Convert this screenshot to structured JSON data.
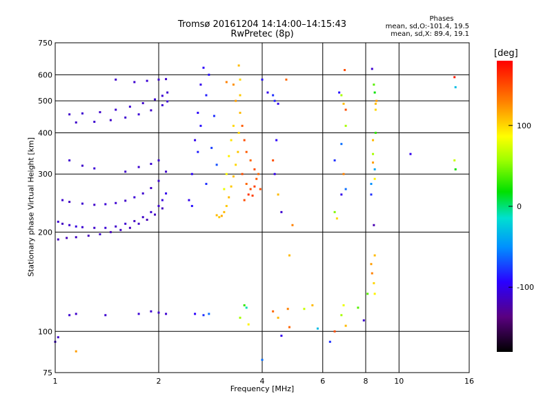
{
  "chart_data": {
    "type": "scatter",
    "title": "Tromsø 20161204 14:14:00–14:15:43",
    "subtitle": "RwPretec (8p)",
    "xlabel": "Frequency [MHz]",
    "ylabel": "Stationary phase Virtual Height [km]",
    "x_scale": "log",
    "y_scale": "log",
    "xlim": [
      1,
      16
    ],
    "ylim": [
      75,
      750
    ],
    "x_ticks": [
      1,
      2,
      4,
      6,
      8,
      10,
      16
    ],
    "y_ticks": [
      75,
      100,
      200,
      300,
      400,
      500,
      600,
      750
    ],
    "grid": true,
    "legend": {
      "title": "Phases",
      "lines": [
        "mean, sd,O:-101.4, 19.5",
        "mean, sd,X: 89.4, 19.1"
      ],
      "placement": "top-right"
    },
    "colorbar": {
      "unit": "[deg]",
      "ticks": [
        100,
        0,
        -100
      ],
      "range": [
        -180,
        180
      ]
    },
    "series": [
      {
        "points": [
          [
            1.02,
            215,
            -110
          ],
          [
            1.05,
            212,
            -115
          ],
          [
            1.1,
            210,
            -110
          ],
          [
            1.15,
            208,
            -105
          ],
          [
            1.2,
            207,
            -110
          ],
          [
            1.3,
            206,
            -112
          ],
          [
            1.4,
            206,
            -108
          ],
          [
            1.5,
            208,
            -112
          ],
          [
            1.6,
            212,
            -110
          ],
          [
            1.7,
            216,
            -115
          ],
          [
            1.8,
            222,
            -112
          ],
          [
            1.9,
            230,
            -108
          ],
          [
            2.0,
            240,
            -110
          ],
          [
            2.05,
            250,
            -105
          ],
          [
            2.1,
            262,
            -100
          ],
          [
            1.02,
            190,
            -115
          ],
          [
            1.08,
            192,
            -118
          ],
          [
            1.15,
            193,
            -114
          ],
          [
            1.25,
            195,
            -116
          ],
          [
            1.35,
            197,
            -112
          ],
          [
            1.45,
            200,
            -118
          ],
          [
            1.55,
            203,
            -114
          ],
          [
            1.65,
            206,
            -116
          ],
          [
            1.75,
            212,
            -112
          ],
          [
            1.85,
            218,
            -118
          ],
          [
            1.95,
            226,
            -114
          ],
          [
            2.05,
            236,
            -116
          ],
          [
            1.05,
            250,
            -110
          ],
          [
            1.1,
            247,
            -115
          ],
          [
            1.2,
            244,
            -110
          ],
          [
            1.3,
            242,
            -112
          ],
          [
            1.4,
            243,
            -108
          ],
          [
            1.5,
            245,
            -110
          ],
          [
            1.6,
            249,
            -112
          ],
          [
            1.7,
            255,
            -108
          ],
          [
            1.8,
            262,
            -110
          ],
          [
            1.9,
            272,
            -112
          ],
          [
            2.0,
            286,
            -110
          ],
          [
            2.1,
            305,
            -112
          ],
          [
            1.1,
            330,
            -110
          ],
          [
            1.2,
            318,
            -112
          ],
          [
            1.3,
            312,
            -108
          ],
          [
            1.6,
            305,
            -112
          ],
          [
            1.75,
            315,
            -110
          ],
          [
            1.9,
            322,
            -108
          ],
          [
            2.0,
            330,
            -110
          ],
          [
            1.1,
            455,
            -112
          ],
          [
            1.2,
            458,
            -110
          ],
          [
            1.35,
            462,
            -112
          ],
          [
            1.5,
            470,
            -110
          ],
          [
            1.65,
            480,
            -108
          ],
          [
            1.8,
            492,
            -112
          ],
          [
            1.95,
            505,
            -110
          ],
          [
            2.05,
            518,
            -108
          ],
          [
            2.12,
            530,
            -110
          ],
          [
            1.15,
            430,
            -112
          ],
          [
            1.3,
            432,
            -110
          ],
          [
            1.45,
            437,
            -112
          ],
          [
            1.6,
            445,
            -110
          ],
          [
            1.75,
            455,
            -108
          ],
          [
            1.9,
            468,
            -112
          ],
          [
            2.05,
            485,
            -110
          ],
          [
            2.12,
            498,
            -108
          ],
          [
            1.5,
            580,
            -112
          ],
          [
            1.7,
            570,
            -110
          ],
          [
            1.85,
            575,
            -108
          ],
          [
            2.0,
            580,
            -110
          ],
          [
            2.1,
            582,
            -112
          ],
          [
            2.45,
            250,
            -100
          ],
          [
            2.5,
            300,
            -95
          ],
          [
            2.55,
            380,
            -100
          ],
          [
            2.6,
            460,
            -95
          ],
          [
            2.65,
            560,
            -100
          ],
          [
            2.7,
            630,
            -95
          ],
          [
            2.5,
            240,
            -90
          ],
          [
            2.6,
            350,
            -85
          ],
          [
            2.65,
            420,
            -90
          ],
          [
            2.75,
            520,
            -85
          ],
          [
            2.8,
            600,
            -90
          ],
          [
            2.75,
            280,
            -80
          ],
          [
            2.85,
            360,
            -75
          ],
          [
            2.9,
            450,
            -80
          ],
          [
            2.95,
            320,
            -70
          ],
          [
            1.1,
            112,
            -110
          ],
          [
            1.15,
            113,
            -112
          ],
          [
            1.4,
            112,
            -110
          ],
          [
            1.75,
            113,
            -108
          ],
          [
            1.9,
            115,
            -110
          ],
          [
            2.0,
            114,
            -112
          ],
          [
            2.1,
            113,
            -110
          ],
          [
            2.55,
            113,
            -95
          ],
          [
            2.7,
            112,
            -80
          ],
          [
            2.8,
            113,
            -60
          ],
          [
            1.0,
            93,
            -110
          ],
          [
            1.02,
            96,
            -112
          ],
          [
            1.15,
            87,
            120
          ]
        ]
      },
      {
        "points": [
          [
            2.95,
            225,
            110
          ],
          [
            3.0,
            222,
            105
          ],
          [
            3.05,
            224,
            115
          ],
          [
            3.1,
            230,
            110
          ],
          [
            3.15,
            240,
            105
          ],
          [
            3.2,
            255,
            110
          ],
          [
            3.25,
            275,
            105
          ],
          [
            3.3,
            295,
            110
          ],
          [
            3.35,
            320,
            100
          ],
          [
            3.4,
            350,
            105
          ],
          [
            3.42,
            400,
            100
          ],
          [
            3.45,
            460,
            110
          ],
          [
            3.45,
            520,
            105
          ],
          [
            3.45,
            580,
            100
          ],
          [
            3.42,
            640,
            110
          ],
          [
            3.5,
            300,
            150
          ],
          [
            3.6,
            280,
            140
          ],
          [
            3.7,
            270,
            150
          ],
          [
            3.8,
            275,
            155
          ],
          [
            3.85,
            290,
            145
          ],
          [
            3.8,
            310,
            150
          ],
          [
            3.7,
            330,
            140
          ],
          [
            3.6,
            350,
            145
          ],
          [
            3.55,
            380,
            150
          ],
          [
            3.5,
            420,
            145
          ],
          [
            3.2,
            340,
            90
          ],
          [
            3.25,
            380,
            95
          ],
          [
            3.3,
            420,
            100
          ],
          [
            3.15,
            300,
            85
          ],
          [
            3.1,
            270,
            80
          ],
          [
            3.55,
            250,
            150
          ],
          [
            3.65,
            260,
            160
          ],
          [
            3.75,
            258,
            155
          ],
          [
            3.9,
            300,
            140
          ],
          [
            3.95,
            270,
            150
          ],
          [
            3.15,
            570,
            130
          ],
          [
            3.35,
            500,
            120
          ],
          [
            3.3,
            560,
            125
          ]
        ]
      },
      {
        "points": [
          [
            4.0,
            580,
            -90
          ],
          [
            4.15,
            530,
            -100
          ],
          [
            4.3,
            520,
            -80
          ],
          [
            4.35,
            500,
            -85
          ],
          [
            4.45,
            490,
            -100
          ],
          [
            4.7,
            580,
            140
          ],
          [
            4.4,
            380,
            -95
          ],
          [
            4.3,
            330,
            150
          ],
          [
            4.35,
            300,
            -100
          ],
          [
            4.45,
            260,
            110
          ],
          [
            4.55,
            230,
            -110
          ],
          [
            4.8,
            170,
            110
          ],
          [
            4.9,
            210,
            130
          ],
          [
            3.55,
            120,
            30
          ],
          [
            3.6,
            118,
            -10
          ],
          [
            3.45,
            110,
            60
          ],
          [
            3.65,
            105,
            90
          ],
          [
            4.0,
            82,
            -60
          ],
          [
            4.3,
            115,
            140
          ],
          [
            4.45,
            110,
            110
          ],
          [
            4.75,
            117,
            130
          ],
          [
            4.8,
            103,
            140
          ],
          [
            4.55,
            97,
            -100
          ],
          [
            5.3,
            117,
            70
          ],
          [
            5.6,
            120,
            110
          ],
          [
            5.8,
            102,
            -30
          ],
          [
            6.3,
            93,
            -80
          ],
          [
            6.5,
            100,
            150
          ],
          [
            6.8,
            112,
            60
          ],
          [
            6.9,
            120,
            80
          ],
          [
            7.0,
            104,
            110
          ],
          [
            6.5,
            230,
            50
          ],
          [
            6.6,
            220,
            100
          ],
          [
            6.8,
            260,
            -100
          ],
          [
            7.0,
            270,
            -60
          ],
          [
            6.9,
            300,
            130
          ],
          [
            6.5,
            330,
            -80
          ],
          [
            6.8,
            370,
            -60
          ],
          [
            7.0,
            420,
            60
          ],
          [
            6.9,
            490,
            110
          ],
          [
            6.8,
            520,
            60
          ],
          [
            7.0,
            470,
            150
          ],
          [
            6.95,
            620,
            150
          ],
          [
            6.7,
            530,
            -90
          ],
          [
            7.6,
            118,
            40
          ],
          [
            7.9,
            108,
            -110
          ],
          [
            8.1,
            130,
            40
          ],
          [
            8.3,
            160,
            120
          ],
          [
            8.35,
            150,
            130
          ],
          [
            8.45,
            140,
            100
          ],
          [
            8.5,
            130,
            90
          ],
          [
            8.5,
            170,
            110
          ],
          [
            8.45,
            210,
            -120
          ],
          [
            8.3,
            280,
            -50
          ],
          [
            8.3,
            260,
            -80
          ],
          [
            8.4,
            325,
            120
          ],
          [
            8.4,
            345,
            60
          ],
          [
            8.5,
            310,
            -40
          ],
          [
            8.5,
            290,
            90
          ],
          [
            8.55,
            490,
            110
          ],
          [
            8.55,
            470,
            100
          ],
          [
            8.6,
            500,
            120
          ],
          [
            8.5,
            530,
            20
          ],
          [
            8.45,
            560,
            40
          ],
          [
            8.55,
            400,
            30
          ],
          [
            8.4,
            380,
            110
          ],
          [
            8.35,
            625,
            -110
          ],
          [
            10.8,
            345,
            -100
          ],
          [
            14.5,
            590,
            170
          ],
          [
            14.6,
            550,
            -30
          ],
          [
            14.5,
            330,
            70
          ],
          [
            14.6,
            310,
            20
          ]
        ]
      }
    ]
  }
}
